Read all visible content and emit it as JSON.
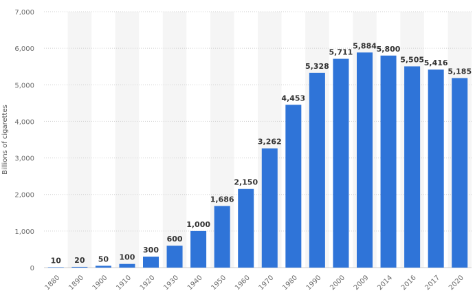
{
  "chart_data": {
    "type": "bar",
    "categories": [
      "1880",
      "1890",
      "1900",
      "1910",
      "1920",
      "1930",
      "1940",
      "1950",
      "1960",
      "1970",
      "1980",
      "1990",
      "2000",
      "2009",
      "2014",
      "2016",
      "2017",
      "2020"
    ],
    "values": [
      10,
      20,
      50,
      100,
      300,
      600,
      1000,
      1686,
      2150,
      3262,
      4453,
      5328,
      5711,
      5884,
      5800,
      5505,
      5416,
      5185
    ],
    "value_labels": [
      "10",
      "20",
      "50",
      "100",
      "300",
      "600",
      "1,000",
      "1,686",
      "2,150",
      "3,262",
      "4,453",
      "5,328",
      "5,711",
      "5,884",
      "5,800",
      "5,505",
      "5,416",
      "5,185"
    ],
    "ylabel": "Billions of cigarettes",
    "xlabel": "",
    "ylim": [
      0,
      7000
    ],
    "y_ticks": [
      0,
      1000,
      2000,
      3000,
      4000,
      5000,
      6000,
      7000
    ],
    "y_tick_labels": [
      "0",
      "1,000",
      "2,000",
      "3,000",
      "4,000",
      "5,000",
      "6,000",
      "7,000"
    ],
    "grid": true,
    "bar_color": "#2f74d8",
    "band_color": "#f5f5f5"
  }
}
